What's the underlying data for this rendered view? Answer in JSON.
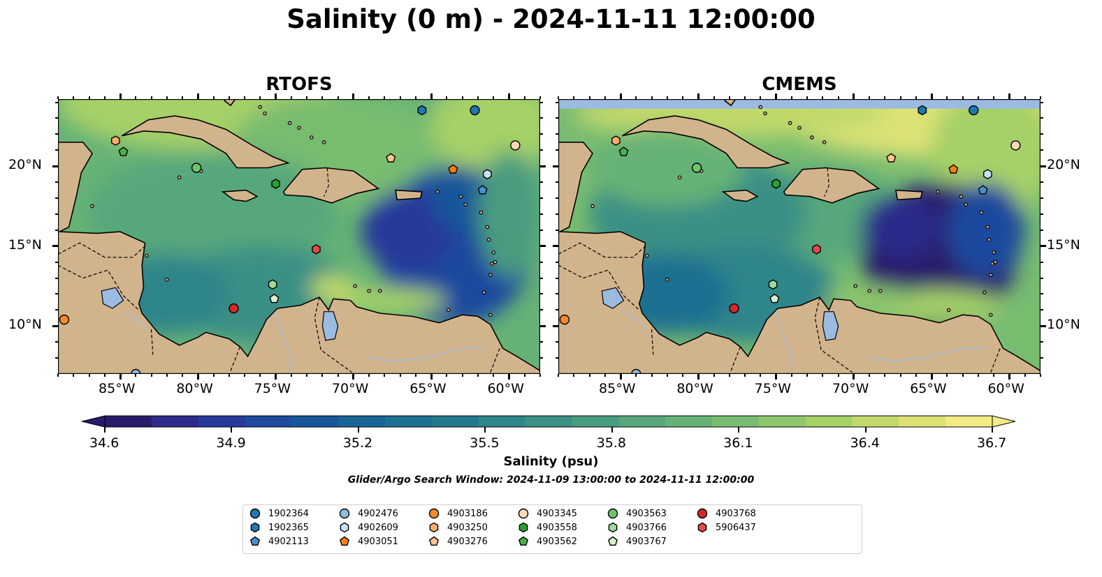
{
  "title": "Salinity (0 m) - 2024-11-11 12:00:00",
  "panels": [
    {
      "id": "rtofs",
      "title": "RTOFS"
    },
    {
      "id": "cmems",
      "title": "CMEMS"
    }
  ],
  "map": {
    "lon_range": [
      -89,
      -58
    ],
    "lat_range": [
      7,
      24.2
    ],
    "lon_ticks": [
      {
        "lon": -85,
        "label": "85°W"
      },
      {
        "lon": -80,
        "label": "80°W"
      },
      {
        "lon": -75,
        "label": "75°W"
      },
      {
        "lon": -70,
        "label": "70°W"
      },
      {
        "lon": -65,
        "label": "65°W"
      },
      {
        "lon": -60,
        "label": "60°W"
      }
    ],
    "lat_ticks": [
      {
        "lat": 20,
        "label": "20°N"
      },
      {
        "lat": 15,
        "label": "15°N"
      },
      {
        "lat": 10,
        "label": "10°N"
      }
    ],
    "colors": {
      "land": "#d2b48c",
      "lake": "#9bbbe0",
      "missing": "#9bbbe0"
    }
  },
  "colorbar": {
    "label": "Salinity (psu)",
    "min": 34.6,
    "max": 36.7,
    "ticks": [
      "34.6",
      "34.9",
      "35.2",
      "35.5",
      "35.8",
      "36.1",
      "36.4",
      "36.7"
    ],
    "colors": [
      "#2a1a6b",
      "#2c2a8a",
      "#27399a",
      "#1f4a9e",
      "#17579a",
      "#186596",
      "#1d7091",
      "#26798d",
      "#2f858a",
      "#3a9085",
      "#489c7f",
      "#57a77b",
      "#66b276",
      "#78bc70",
      "#8ec76b",
      "#a6d068",
      "#c1d96b",
      "#dce274",
      "#f2ea86"
    ]
  },
  "search_window": "Glider/Argo Search Window: 2024-11-09 13:00:00 to 2024-11-11 12:00:00",
  "floats": [
    {
      "id": "1902364",
      "marker": "circle",
      "color": "#1f77b4",
      "lon": -62.2,
      "lat": 23.5,
      "lon_cmems": -62.3
    },
    {
      "id": "1902365",
      "marker": "hexagon",
      "color": "#1f77b4",
      "lon": -65.6,
      "lat": 23.5
    },
    {
      "id": "4902113",
      "marker": "pentagon",
      "color": "#4a8fcc",
      "lon": -61.7,
      "lat": 18.5
    },
    {
      "id": "4902476",
      "marker": "circle",
      "color": "#8fbde0",
      "lon": -84.0,
      "lat": 7.0
    },
    {
      "id": "4902609",
      "marker": "hexagon",
      "color": "#c7e2f4",
      "lon": -61.4,
      "lat": 19.5
    },
    {
      "id": "4903051",
      "marker": "pentagon",
      "color": "#ff7f0e",
      "lon": -63.6,
      "lat": 19.8
    },
    {
      "id": "4903186",
      "marker": "circle",
      "color": "#f58a2a",
      "lon": -88.6,
      "lat": 10.4
    },
    {
      "id": "4903250",
      "marker": "hexagon",
      "color": "#fdae6b",
      "lon": -85.3,
      "lat": 21.6
    },
    {
      "id": "4903276",
      "marker": "pentagon",
      "color": "#fdc48c",
      "lon": -67.6,
      "lat": 20.5
    },
    {
      "id": "4903345",
      "marker": "circle",
      "color": "#fdd9b8",
      "lon": -59.6,
      "lat": 21.3
    },
    {
      "id": "4903558",
      "marker": "hexagon",
      "color": "#2ca02c",
      "lon": -75.0,
      "lat": 18.9
    },
    {
      "id": "4903562",
      "marker": "pentagon",
      "color": "#4bb04b",
      "lon": -84.8,
      "lat": 20.9
    },
    {
      "id": "4903563",
      "marker": "circle",
      "color": "#6cc56c",
      "lon": -80.1,
      "lat": 19.9
    },
    {
      "id": "4903766",
      "marker": "hexagon",
      "color": "#a1d99b",
      "lon": -75.2,
      "lat": 12.6
    },
    {
      "id": "4903767",
      "marker": "pentagon",
      "color": "#d4f0cc",
      "lon": -75.1,
      "lat": 11.7
    },
    {
      "id": "4903768",
      "marker": "circle",
      "color": "#d62728",
      "lon": -77.7,
      "lat": 11.1
    },
    {
      "id": "5906437",
      "marker": "hexagon",
      "color": "#e6474a",
      "lon": -72.4,
      "lat": 14.8
    }
  ]
}
